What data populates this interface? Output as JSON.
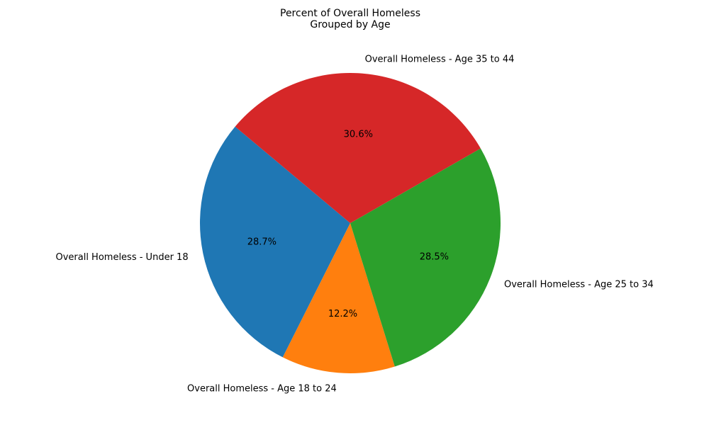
{
  "chart_data": {
    "type": "pie",
    "title": "Percent of Overall Homeless\nGrouped by Age",
    "start_angle_deg": 140,
    "direction": "counterclockwise",
    "slices": [
      {
        "label": "Overall Homeless - Under 18",
        "value": 28.7,
        "pct_label": "28.7%",
        "color": "#1f77b4"
      },
      {
        "label": "Overall Homeless - Age 18 to 24",
        "value": 12.2,
        "pct_label": "12.2%",
        "color": "#ff7f0e"
      },
      {
        "label": "Overall Homeless - Age 25 to 34",
        "value": 28.5,
        "pct_label": "28.5%",
        "color": "#2ca02c"
      },
      {
        "label": "Overall Homeless - Age 35 to 44",
        "value": 30.6,
        "pct_label": "30.6%",
        "color": "#d62728"
      }
    ]
  }
}
